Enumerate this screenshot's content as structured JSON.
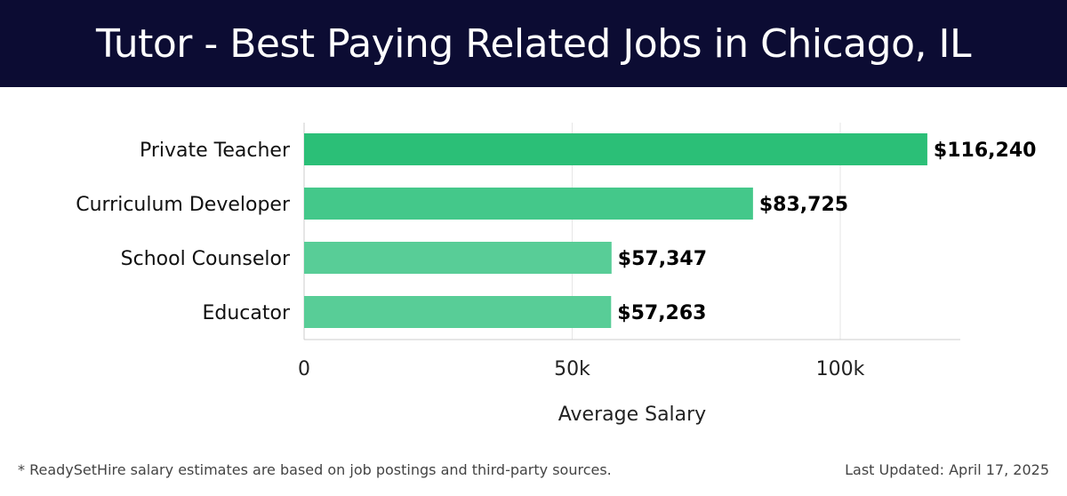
{
  "header": {
    "title": "Tutor - Best Paying Related Jobs in Chicago, IL"
  },
  "chart_data": {
    "type": "bar",
    "orientation": "horizontal",
    "categories": [
      "Private Teacher",
      "Curriculum Developer",
      "School Counselor",
      "Educator"
    ],
    "values": [
      116240,
      83725,
      57347,
      57263
    ],
    "value_labels": [
      "$116,240",
      "$83,725",
      "$57,347",
      "$57,263"
    ],
    "xlabel": "Average Salary",
    "ylabel": "",
    "xlim": [
      0,
      122000
    ],
    "x_ticks": [
      0,
      50000,
      100000
    ],
    "x_tick_labels": [
      "0",
      "50k",
      "100k"
    ],
    "grid": "vertical",
    "colors": [
      "#2bbf77",
      "#44c88a",
      "#58cd97",
      "#58cd97"
    ]
  },
  "footer": {
    "disclaimer": "* ReadySetHire salary estimates are based on job postings and third-party sources.",
    "updated": "Last Updated: April 17, 2025"
  }
}
